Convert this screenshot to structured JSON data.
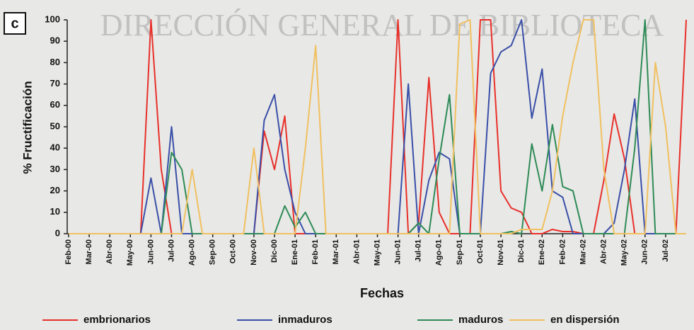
{
  "chart_data": {
    "type": "line",
    "panel_label": "c",
    "watermark": "DIRECCIÓN GENERAL DE BIBLIOTECA",
    "ylabel": "% Fructificación",
    "xlabel": "Fechas",
    "categories": [
      "Feb-00",
      null,
      "Mar-00",
      null,
      "Abr-00",
      null,
      "May-00",
      null,
      "Jun-00",
      null,
      "Jul-00",
      null,
      "Ago-00",
      null,
      "Sep-00",
      null,
      "Oct-00",
      null,
      "Nov-00",
      null,
      "Dic-00",
      null,
      "Ene-01",
      null,
      "Feb-01",
      null,
      "Mar-01",
      null,
      "Abr-01",
      null,
      "May-01",
      null,
      "Jun-01",
      null,
      "Jul-01",
      null,
      "Ago-01",
      null,
      "Sep-01",
      null,
      "Oct-01",
      null,
      "Nov-01",
      null,
      "Dic-01",
      null,
      "Ene-02",
      null,
      "Feb-02",
      null,
      "Mar-02",
      null,
      "Abr-02",
      null,
      "May-02",
      null,
      "Jun-02",
      null,
      "Jul-02",
      null,
      null
    ],
    "series": [
      {
        "name": "embrionarios",
        "color": "#e8302a",
        "values": [
          0,
          0,
          0,
          0,
          0,
          0,
          0,
          0,
          100,
          30,
          0,
          0,
          0,
          0,
          0,
          0,
          0,
          0,
          0,
          48,
          30,
          55,
          0,
          0,
          0,
          0,
          0,
          0,
          0,
          0,
          0,
          0,
          100,
          0,
          5,
          73,
          10,
          0,
          0,
          0,
          100,
          100,
          20,
          12,
          10,
          0,
          0,
          2,
          1,
          1,
          0,
          0,
          25,
          56,
          35,
          0,
          0,
          0,
          0,
          0,
          100
        ]
      },
      {
        "name": "inmaduros",
        "color": "#3a4fa8",
        "values": [
          0,
          0,
          0,
          0,
          0,
          0,
          0,
          0,
          26,
          0,
          50,
          0,
          0,
          0,
          0,
          0,
          0,
          0,
          0,
          53,
          65,
          30,
          10,
          0,
          0,
          0,
          0,
          0,
          0,
          0,
          0,
          0,
          0,
          70,
          0,
          25,
          38,
          35,
          0,
          0,
          0,
          75,
          85,
          88,
          100,
          54,
          77,
          20,
          17,
          0,
          0,
          0,
          0,
          5,
          30,
          63,
          0,
          0,
          0,
          0,
          0
        ]
      },
      {
        "name": "maduros",
        "color": "#2e8b57",
        "values": [
          0,
          0,
          0,
          0,
          0,
          0,
          0,
          0,
          0,
          0,
          38,
          30,
          0,
          0,
          0,
          0,
          0,
          0,
          0,
          0,
          0,
          13,
          3,
          10,
          0,
          0,
          0,
          0,
          0,
          0,
          0,
          0,
          0,
          0,
          5,
          0,
          35,
          65,
          0,
          0,
          0,
          0,
          0,
          1,
          0,
          42,
          20,
          51,
          22,
          20,
          0,
          0,
          0,
          0,
          0,
          40,
          100,
          0,
          0,
          0,
          0
        ]
      },
      {
        "name": "en dispersión",
        "color": "#f0c060",
        "values": [
          0,
          0,
          0,
          0,
          0,
          0,
          0,
          0,
          0,
          0,
          0,
          0,
          30,
          0,
          0,
          0,
          0,
          0,
          40,
          0,
          0,
          0,
          0,
          40,
          88,
          0,
          0,
          0,
          0,
          0,
          0,
          0,
          0,
          0,
          0,
          0,
          0,
          0,
          98,
          100,
          0,
          0,
          0,
          0,
          2,
          2,
          2,
          20,
          55,
          80,
          100,
          100,
          30,
          0,
          0,
          0,
          0,
          80,
          50,
          0,
          0
        ]
      }
    ],
    "ylim": [
      0,
      100
    ],
    "yticks": [
      0,
      10,
      20,
      30,
      40,
      50,
      60,
      70,
      80,
      90,
      100
    ],
    "grid": false
  }
}
